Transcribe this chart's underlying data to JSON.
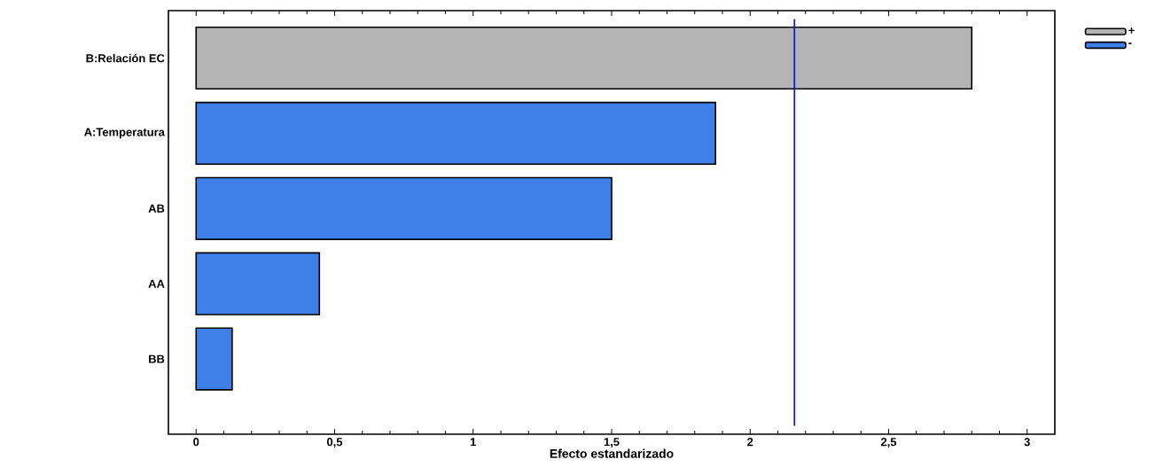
{
  "chart_data": {
    "type": "bar",
    "orientation": "horizontal",
    "xlabel": "Efecto estandarizado",
    "categories": [
      "B:Relación EC",
      "A:Temperatura",
      "AB",
      "AA",
      "BB"
    ],
    "series": [
      {
        "name": "+",
        "color": "#b4b4b4",
        "values": [
          2.8,
          null,
          null,
          null,
          null
        ]
      },
      {
        "name": "-",
        "color": "#3f7fea",
        "values": [
          null,
          1.875,
          1.5,
          0.445,
          0.13
        ]
      }
    ],
    "xlim": [
      -0.1,
      3.1
    ],
    "xticks": [
      0,
      {
        "value": 0.5,
        "label": "0,5"
      },
      1,
      {
        "value": 1.5,
        "label": "1,5"
      },
      2,
      {
        "value": 2.5,
        "label": "2,5"
      },
      3
    ],
    "ref_lines": [
      {
        "axis": "x",
        "value": 2.16,
        "color": "#1a1ad8"
      }
    ],
    "legend": "top right",
    "grid": false
  }
}
